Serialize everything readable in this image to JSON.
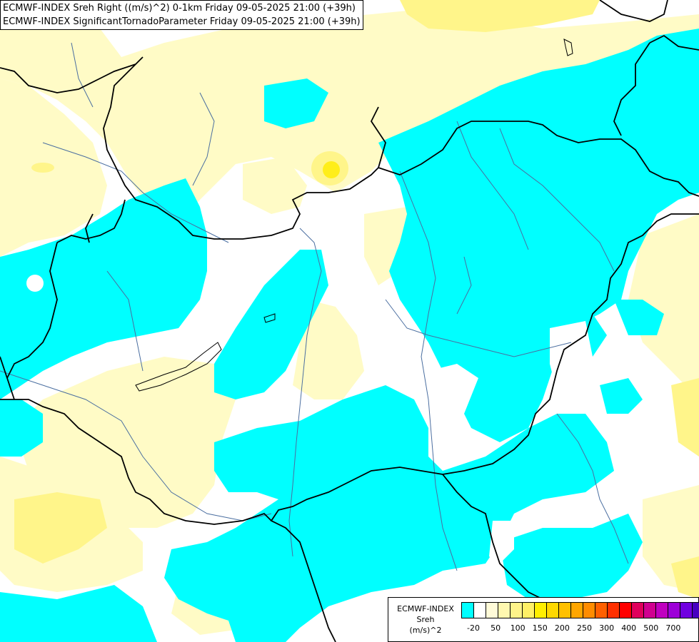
{
  "header": {
    "title_line1": "ECMWF-INDEX Sreh Right ((m/s)^2) 0-1km Friday 09-05-2025 21:00 (+39h)",
    "title_line2": "ECMWF-INDEX SignificantTornadoParameter Friday 09-05-2025 21:00 (+39h)"
  },
  "legend": {
    "line1": "ECMWF-INDEX",
    "line2": "Sreh",
    "line3": "(m/s)^2",
    "colors": [
      "#00ffff",
      "#ffffff",
      "#fffbd8",
      "#fff8b0",
      "#fff48a",
      "#fff066",
      "#ffee00",
      "#ffd800",
      "#ffc000",
      "#ffa600",
      "#ff8c00",
      "#ff6000",
      "#ff3000",
      "#ff0000",
      "#e0005c",
      "#d00090",
      "#c000c0",
      "#9d00d8",
      "#7000e0",
      "#4800c0",
      "#2c0090",
      "#0a0060"
    ],
    "labels": [
      "-20",
      "50",
      "100",
      "150",
      "200",
      "250",
      "300",
      "400",
      "500",
      "700"
    ]
  },
  "colors": {
    "cyan": "#00ffff",
    "pale_yellow": "#fffbc6",
    "yellow": "#fff58a",
    "bright_yellow": "#ffee1a",
    "border": "#000000",
    "river": "#4a6ea0"
  }
}
